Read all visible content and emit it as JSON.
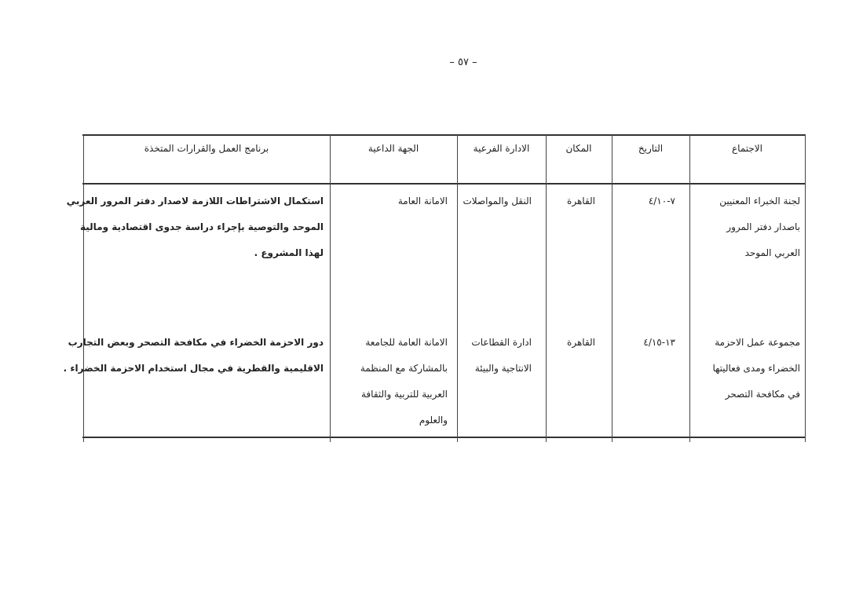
{
  "page_number": "– ٥٧ –",
  "table": {
    "headers": {
      "meeting": "الاجتماع",
      "date": "التاريخ",
      "place": "المكان",
      "sub_department": "الادارة الفرعية",
      "sponsor": "الجهة الداعية",
      "program": "برنامج العمل والقرارات المتخذة"
    },
    "rows": [
      {
        "meeting": [
          "لجنة الخبراء المعنيين",
          "باصدار دفتر المرور",
          "العربي الموحد"
        ],
        "date": "٧-٤/١٠",
        "place": "القاهرة",
        "sub_department": [
          "النقل والمواصلات"
        ],
        "sponsor": [
          "الامانة العامة"
        ],
        "program": [
          "استكمال الاشتراطات اللازمة لاصدار دفتر المرور العربي",
          "الموحد والتوصية بإجراء دراسة جدوى اقتصادية ومالية",
          "لهذا المشروع ."
        ]
      },
      {
        "meeting": [
          "مجموعة عمل الاحزمة",
          "الخضراء ومدى فعاليتها",
          "في مكافحة التصحر"
        ],
        "date": "١٣-٤/١٥",
        "place": "القاهرة",
        "sub_department": [
          "ادارة القطاعات",
          "الانتاجية والبيئة"
        ],
        "sponsor": [
          "الامانة العامة للجامعة",
          "بالمشاركة مع المنظمة",
          "العربية للتربية والثقافة",
          "والعلوم"
        ],
        "program": [
          "دور الاحزمة الخضراء في مكافحة التصحر وبعض التجارب",
          "الاقليمية والقطرية في مجال استخدام الاحزمة الخضراء ."
        ]
      }
    ]
  }
}
